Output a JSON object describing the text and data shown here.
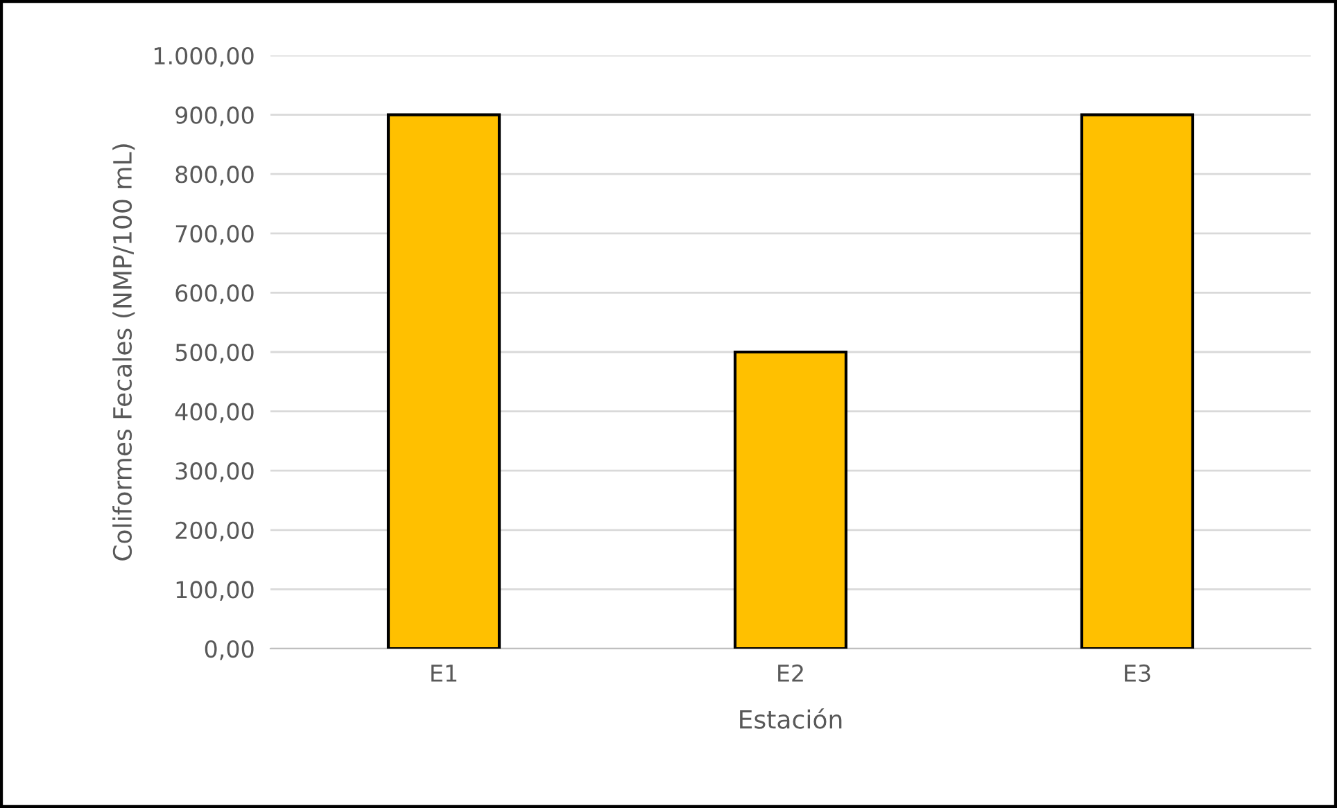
{
  "chart_data": {
    "type": "bar",
    "xlabel": "Estación",
    "ylabel": "Coliformes Fecales (NMP/100 mL)",
    "categories": [
      "E1",
      "E2",
      "E3"
    ],
    "values": [
      900,
      500,
      900
    ],
    "color": "#ffc000",
    "ylim": [
      0,
      1000
    ],
    "yticks": [
      {
        "value": 0,
        "label": "0,00"
      },
      {
        "value": 100,
        "label": "100,00"
      },
      {
        "value": 200,
        "label": "200,00"
      },
      {
        "value": 300,
        "label": "300,00"
      },
      {
        "value": 400,
        "label": "400,00"
      },
      {
        "value": 500,
        "label": "500,00"
      },
      {
        "value": 600,
        "label": "600,00"
      },
      {
        "value": 700,
        "label": "700,00"
      },
      {
        "value": 800,
        "label": "800,00"
      },
      {
        "value": 900,
        "label": "900,00"
      },
      {
        "value": 1000,
        "label": "1.000,00"
      }
    ],
    "grid": "y",
    "legend": false
  }
}
